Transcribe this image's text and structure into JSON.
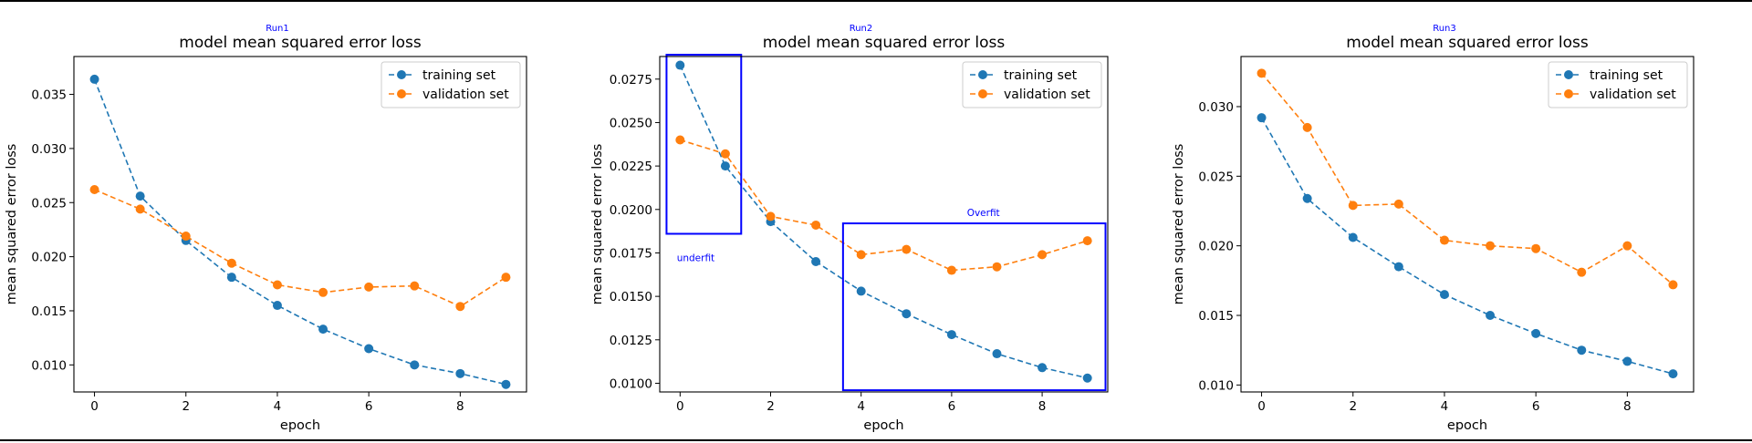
{
  "chart_data": [
    {
      "type": "line",
      "run_label": "Run1",
      "title": "model mean squared error loss",
      "xlabel": "epoch",
      "ylabel": "mean squared error loss",
      "xlim": [
        -0.45,
        9.45
      ],
      "ylim": [
        0.0075,
        0.0385
      ],
      "xticks": [
        0,
        2,
        4,
        6,
        8
      ],
      "yticks": [
        0.01,
        0.015,
        0.02,
        0.025,
        0.03,
        0.035
      ],
      "ytick_labels": [
        "0.010",
        "0.015",
        "0.020",
        "0.025",
        "0.030",
        "0.035"
      ],
      "x": [
        0,
        1,
        2,
        3,
        4,
        5,
        6,
        7,
        8,
        9
      ],
      "series": [
        {
          "name": "training set",
          "color": "#1f77b4",
          "values": [
            0.0364,
            0.0256,
            0.0215,
            0.0181,
            0.0155,
            0.0133,
            0.0115,
            0.01,
            0.0092,
            0.0082
          ]
        },
        {
          "name": "validation set",
          "color": "#ff7f0e",
          "values": [
            0.0262,
            0.0244,
            0.0219,
            0.0194,
            0.0174,
            0.0167,
            0.0172,
            0.0173,
            0.0154,
            0.0181
          ]
        }
      ],
      "legend": "top-right",
      "grid": false,
      "annotations": []
    },
    {
      "type": "line",
      "run_label": "Run2",
      "title": "model mean squared error loss",
      "xlabel": "epoch",
      "ylabel": "mean squared error loss",
      "xlim": [
        -0.45,
        9.45
      ],
      "ylim": [
        0.0095,
        0.0288
      ],
      "xticks": [
        0,
        2,
        4,
        6,
        8
      ],
      "yticks": [
        0.01,
        0.0125,
        0.015,
        0.0175,
        0.02,
        0.0225,
        0.025,
        0.0275
      ],
      "ytick_labels": [
        "0.0100",
        "0.0125",
        "0.0150",
        "0.0175",
        "0.0200",
        "0.0225",
        "0.0250",
        "0.0275"
      ],
      "x": [
        0,
        1,
        2,
        3,
        4,
        5,
        6,
        7,
        8,
        9
      ],
      "series": [
        {
          "name": "training set",
          "color": "#1f77b4",
          "values": [
            0.0283,
            0.0225,
            0.0193,
            0.017,
            0.0153,
            0.014,
            0.0128,
            0.0117,
            0.0109,
            0.0103
          ]
        },
        {
          "name": "validation set",
          "color": "#ff7f0e",
          "values": [
            0.024,
            0.0232,
            0.0196,
            0.0191,
            0.0174,
            0.0177,
            0.0165,
            0.0167,
            0.0174,
            0.0182
          ]
        }
      ],
      "legend": "top-right",
      "grid": false,
      "annotations": [
        {
          "label": "underfit",
          "color": "#0000ff",
          "x_range": [
            -0.3,
            1.35
          ],
          "y_range": [
            0.0186,
            0.0289
          ]
        },
        {
          "label": "Overfit",
          "color": "#0000ff",
          "x_range": [
            3.6,
            9.4
          ],
          "y_range": [
            0.0096,
            0.0192
          ]
        }
      ]
    },
    {
      "type": "line",
      "run_label": "Run3",
      "title": "model mean squared error loss",
      "xlabel": "epoch",
      "ylabel": "mean squared error loss",
      "xlim": [
        -0.45,
        9.45
      ],
      "ylim": [
        0.0095,
        0.0336
      ],
      "xticks": [
        0,
        2,
        4,
        6,
        8
      ],
      "yticks": [
        0.01,
        0.015,
        0.02,
        0.025,
        0.03
      ],
      "ytick_labels": [
        "0.010",
        "0.015",
        "0.020",
        "0.025",
        "0.030"
      ],
      "x": [
        0,
        1,
        2,
        3,
        4,
        5,
        6,
        7,
        8,
        9
      ],
      "series": [
        {
          "name": "training set",
          "color": "#1f77b4",
          "values": [
            0.0292,
            0.0234,
            0.0206,
            0.0185,
            0.0165,
            0.015,
            0.0137,
            0.0125,
            0.0117,
            0.0108
          ]
        },
        {
          "name": "validation set",
          "color": "#ff7f0e",
          "values": [
            0.0324,
            0.0285,
            0.0229,
            0.023,
            0.0204,
            0.02,
            0.0198,
            0.0181,
            0.02,
            0.0172
          ]
        }
      ],
      "legend": "top-right",
      "grid": false,
      "annotations": []
    }
  ]
}
